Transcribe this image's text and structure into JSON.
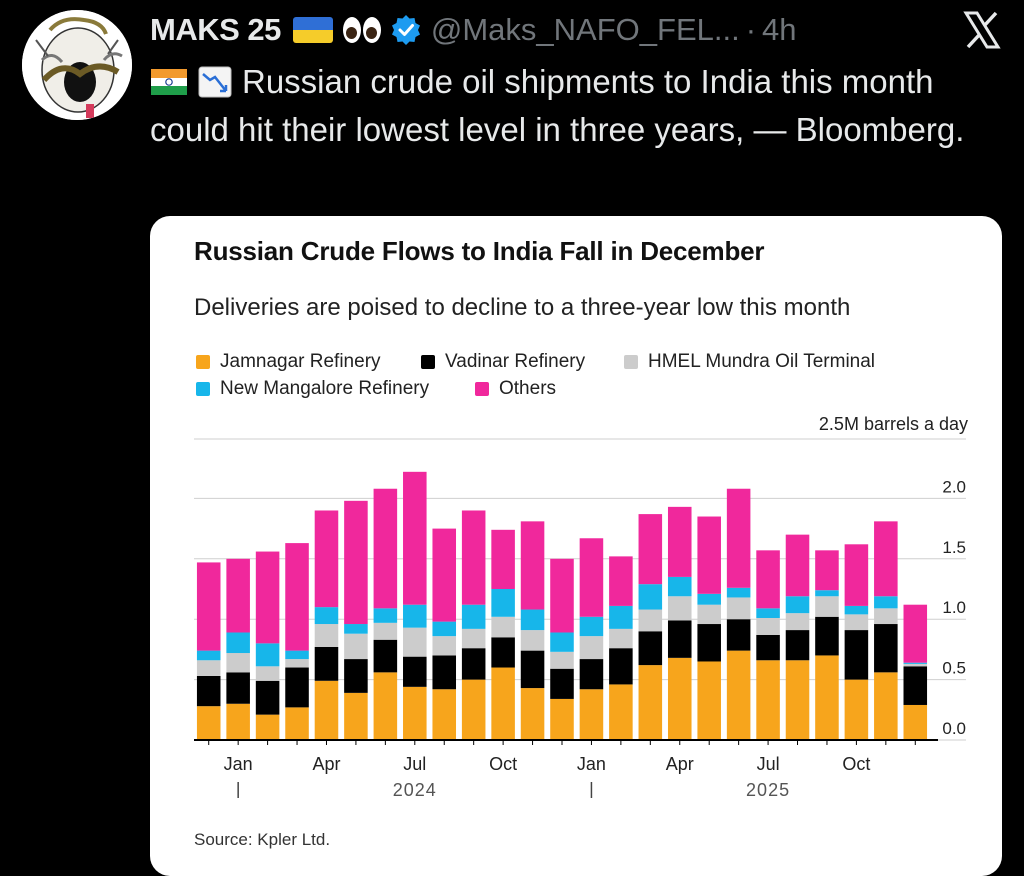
{
  "tweet": {
    "author_name": "MAKS 25",
    "handle": "@Maks_NAFO_FEL...",
    "separator": "·",
    "time": "4h",
    "text": "Russian crude oil shipments to India this month could hit their lowest level in three years, — Bloomberg.",
    "icons": [
      "ukraine-flag-icon",
      "eyes-emoji-icon",
      "verified-badge-icon",
      "x-logo-icon",
      "india-flag-icon",
      "chart-decreasing-icon"
    ]
  },
  "colors": {
    "jamnagar": "#f7a51c",
    "vadinar": "#000000",
    "hmel": "#cccccc",
    "mangalore": "#17b6ea",
    "others": "#f0289c"
  },
  "chart_data": {
    "type": "bar",
    "stacked": true,
    "title": "Russian Crude Flows to India Fall in December",
    "subtitle": "Deliveries are poised to decline to a three-year low this month",
    "unit_label": "2.5M barrels a day",
    "source": "Source: Kpler Ltd.",
    "ylim": [
      0,
      2.5
    ],
    "yticks": [
      "0.0",
      "0.5",
      "1.0",
      "1.5",
      "2.0"
    ],
    "ytick_values": [
      0,
      0.5,
      1.0,
      1.5,
      2.0
    ],
    "legend": [
      {
        "key": "jamnagar",
        "label": "Jamnagar Refinery"
      },
      {
        "key": "vadinar",
        "label": "Vadinar Refinery"
      },
      {
        "key": "hmel",
        "label": "HMEL Mundra Oil Terminal"
      },
      {
        "key": "mangalore",
        "label": "New Mangalore Refinery"
      },
      {
        "key": "others",
        "label": "Others"
      }
    ],
    "x_tick_labels": [
      {
        "index": 1,
        "label": "Jan"
      },
      {
        "index": 4,
        "label": "Apr"
      },
      {
        "index": 7,
        "label": "Jul"
      },
      {
        "index": 10,
        "label": "Oct"
      },
      {
        "index": 13,
        "label": "Jan"
      },
      {
        "index": 16,
        "label": "Apr"
      },
      {
        "index": 19,
        "label": "Jul"
      },
      {
        "index": 22,
        "label": "Oct"
      }
    ],
    "year_labels": [
      {
        "index": 7,
        "label": "2024"
      },
      {
        "index": 19,
        "label": "2025"
      }
    ],
    "year_dividers": [
      1,
      13
    ],
    "categories": [
      "Dec 2023",
      "Jan 2024",
      "Feb 2024",
      "Mar 2024",
      "Apr 2024",
      "May 2024",
      "Jun 2024",
      "Jul 2024",
      "Aug 2024",
      "Sep 2024",
      "Oct 2024",
      "Nov 2024",
      "Dec 2024",
      "Jan 2025",
      "Feb 2025",
      "Mar 2025",
      "Apr 2025",
      "May 2025",
      "Jun 2025",
      "Jul 2025",
      "Aug 2025",
      "Sep 2025",
      "Oct 2025",
      "Nov 2025",
      "Dec 2025"
    ],
    "series": [
      {
        "name": "Jamnagar Refinery",
        "key": "jamnagar",
        "values": [
          0.28,
          0.3,
          0.21,
          0.27,
          0.49,
          0.39,
          0.56,
          0.44,
          0.42,
          0.5,
          0.6,
          0.43,
          0.34,
          0.42,
          0.46,
          0.62,
          0.68,
          0.65,
          0.74,
          0.66,
          0.66,
          0.7,
          0.5,
          0.56,
          0.29
        ]
      },
      {
        "name": "Vadinar Refinery",
        "key": "vadinar",
        "values": [
          0.25,
          0.26,
          0.28,
          0.33,
          0.28,
          0.28,
          0.27,
          0.25,
          0.28,
          0.26,
          0.25,
          0.31,
          0.25,
          0.25,
          0.3,
          0.28,
          0.31,
          0.31,
          0.26,
          0.21,
          0.25,
          0.32,
          0.41,
          0.4,
          0.32
        ]
      },
      {
        "name": "HMEL Mundra Oil Terminal",
        "key": "hmel",
        "values": [
          0.13,
          0.16,
          0.12,
          0.07,
          0.19,
          0.21,
          0.14,
          0.24,
          0.16,
          0.16,
          0.17,
          0.17,
          0.14,
          0.19,
          0.16,
          0.18,
          0.2,
          0.16,
          0.18,
          0.14,
          0.14,
          0.17,
          0.13,
          0.13,
          0.02
        ]
      },
      {
        "name": "New Mangalore Refinery",
        "key": "mangalore",
        "values": [
          0.08,
          0.17,
          0.19,
          0.07,
          0.14,
          0.08,
          0.12,
          0.19,
          0.12,
          0.2,
          0.23,
          0.17,
          0.16,
          0.16,
          0.19,
          0.21,
          0.16,
          0.09,
          0.08,
          0.08,
          0.14,
          0.05,
          0.07,
          0.1,
          0.01
        ]
      },
      {
        "name": "Others",
        "key": "others",
        "values": [
          0.73,
          0.61,
          0.76,
          0.89,
          0.8,
          1.02,
          0.99,
          1.1,
          0.77,
          0.78,
          0.49,
          0.73,
          0.61,
          0.65,
          0.41,
          0.58,
          0.58,
          0.64,
          0.82,
          0.48,
          0.51,
          0.33,
          0.51,
          0.62,
          0.48
        ]
      }
    ]
  }
}
